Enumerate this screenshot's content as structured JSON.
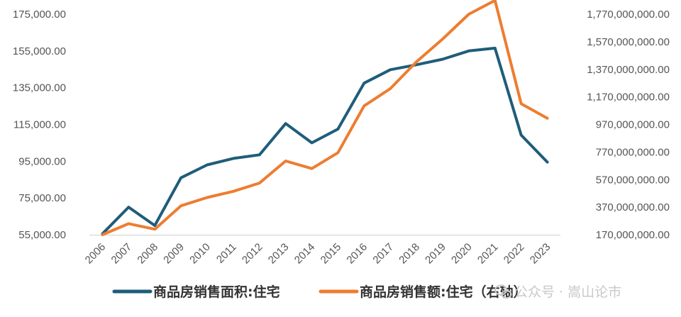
{
  "chart_data": {
    "type": "line",
    "categories": [
      "2006",
      "2007",
      "2008",
      "2009",
      "2010",
      "2011",
      "2012",
      "2013",
      "2014",
      "2015",
      "2016",
      "2017",
      "2018",
      "2019",
      "2020",
      "2021",
      "2022",
      "2023"
    ],
    "series": [
      {
        "name": "商品房销售面积:住宅",
        "axis": "left",
        "color": "#1f5d7a",
        "values": [
          55500,
          70000,
          60000,
          86000,
          93000,
          96500,
          98500,
          115500,
          105000,
          112500,
          137500,
          144800,
          147500,
          150500,
          155000,
          156500,
          109200,
          94500
        ]
      },
      {
        "name": "商品房销售额:住宅（右轴）",
        "axis": "right",
        "color": "#ed7d31",
        "values": [
          170000000,
          250000000,
          210000000,
          380000000,
          440000000,
          485000000,
          545000000,
          705000000,
          650000000,
          765000000,
          1105000000,
          1230000000,
          1425000000,
          1590000000,
          1770000000,
          1870000000,
          1120000000,
          1015000000
        ]
      }
    ],
    "y_left": {
      "range": [
        55000,
        175000
      ],
      "ticks": [
        "55,000.00",
        "75,000.00",
        "95,000.00",
        "115,000.00",
        "135,000.00",
        "155,000.00",
        "175,000.00"
      ],
      "tick_values": [
        55000,
        75000,
        95000,
        115000,
        135000,
        155000,
        175000
      ]
    },
    "y_right": {
      "range": [
        170000000,
        1770000000
      ],
      "ticks": [
        "170,000,000.00",
        "370,000,000.00",
        "570,000,000.00",
        "770,000,000.00",
        "970,000,000.00",
        "1,170,000,000.00",
        "1,370,000,000.00",
        "1,570,000,000.00",
        "1,770,000,000.00"
      ],
      "tick_values": [
        170000000,
        370000000,
        570000000,
        770000000,
        970000000,
        1170000000,
        1370000000,
        1570000000,
        1770000000
      ]
    },
    "grid": false,
    "legend_position": "bottom"
  },
  "watermark": "公众号 · 嵩山论市"
}
